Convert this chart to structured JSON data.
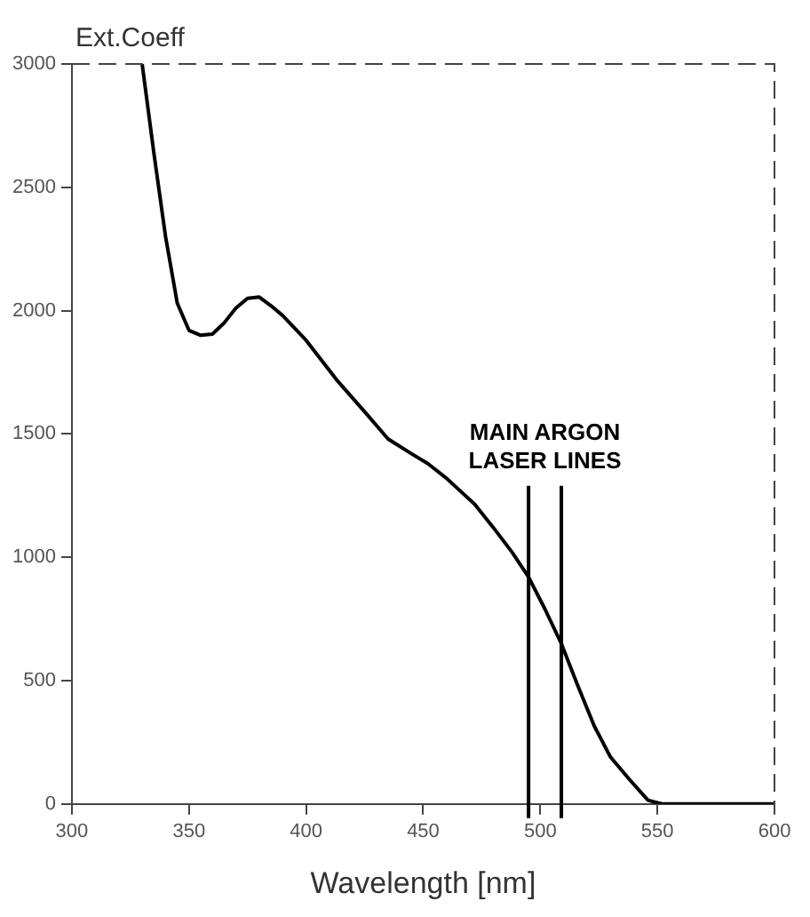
{
  "chart_data": {
    "type": "line",
    "xlabel": "Wavelength [nm]",
    "ylabel": "Ext.Coeff",
    "x": [
      330,
      335,
      340,
      345,
      350,
      355,
      360,
      365,
      370,
      375,
      380,
      385,
      390,
      400,
      413,
      425,
      435,
      445,
      452,
      460,
      472,
      480,
      488,
      495,
      502,
      509,
      516,
      523,
      530,
      538,
      546,
      552,
      560,
      580,
      600
    ],
    "series": [
      {
        "color": "#000000",
        "values": [
          3000,
          2640,
          2300,
          2030,
          1920,
          1900,
          1905,
          1950,
          2010,
          2050,
          2055,
          2020,
          1980,
          1880,
          1720,
          1590,
          1480,
          1420,
          1380,
          1320,
          1215,
          1120,
          1020,
          920,
          790,
          650,
          480,
          317,
          190,
          100,
          15,
          0,
          0,
          0,
          0
        ]
      }
    ],
    "xlim": [
      300,
      600
    ],
    "xticks": [
      300,
      350,
      400,
      450,
      500,
      550,
      600
    ],
    "ylim": [
      0,
      3000
    ],
    "yticks": [
      0,
      500,
      1000,
      1500,
      2000,
      2500,
      3000
    ],
    "grid": false,
    "legend": false,
    "marker": "none",
    "line_style": "solid",
    "ref_lines": [
      {
        "axis": "x",
        "value": 495
      },
      {
        "axis": "x",
        "value": 509
      }
    ],
    "annotations": [
      "MAIN ARGON LASER LINES"
    ]
  }
}
